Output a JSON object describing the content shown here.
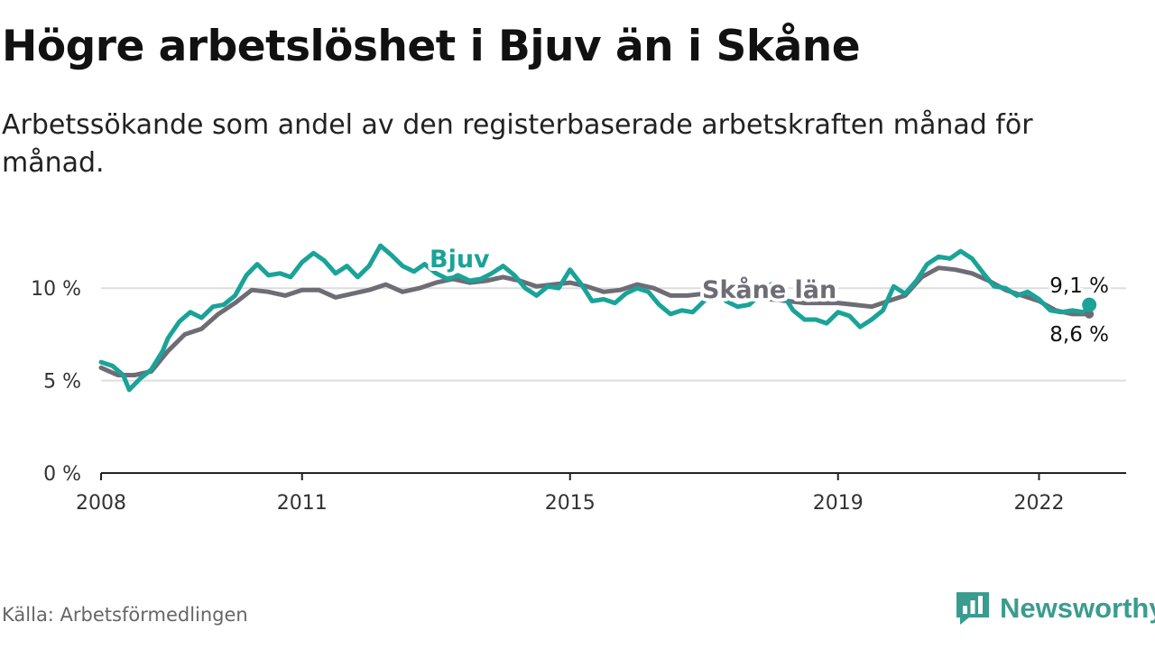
{
  "title": "Högre arbetslöshet i Bjuv än i Skåne",
  "subtitle": "Arbetssökande som andel av den registerbaserade arbetskraften månad för månad.",
  "source": "Källa: Arbetsförmedlingen",
  "brand": "Newsworthy",
  "colors": {
    "bjuv": "#1aa398",
    "skane": "#6e6c75",
    "grid": "#dddddd",
    "axis": "#222222",
    "brand": "#3a9c8f"
  },
  "chart_data": {
    "type": "line",
    "title": "Högre arbetslöshet i Bjuv än i Skåne",
    "xlabel": "",
    "ylabel": "",
    "xlim": [
      2008,
      2023.3
    ],
    "ylim": [
      0,
      12.5
    ],
    "x_ticks": [
      2008,
      2011,
      2015,
      2019,
      2022
    ],
    "x_tick_labels": [
      "2008",
      "2011",
      "2015",
      "2019",
      "2022"
    ],
    "y_ticks": [
      0,
      5,
      10
    ],
    "y_tick_labels": [
      "0 %",
      "5 %",
      "10 %"
    ],
    "grid": true,
    "series": [
      {
        "name": "Bjuv",
        "label": "Bjuv",
        "end_label": "9,1 %",
        "end_value": 9.1,
        "points": [
          [
            2008.0,
            6.0
          ],
          [
            2008.17,
            5.8
          ],
          [
            2008.33,
            5.3
          ],
          [
            2008.42,
            4.5
          ],
          [
            2008.58,
            5.1
          ],
          [
            2008.75,
            5.6
          ],
          [
            2008.92,
            6.6
          ],
          [
            2009.0,
            7.3
          ],
          [
            2009.17,
            8.2
          ],
          [
            2009.33,
            8.7
          ],
          [
            2009.5,
            8.4
          ],
          [
            2009.67,
            9.0
          ],
          [
            2009.83,
            9.1
          ],
          [
            2010.0,
            9.6
          ],
          [
            2010.17,
            10.7
          ],
          [
            2010.33,
            11.3
          ],
          [
            2010.5,
            10.7
          ],
          [
            2010.67,
            10.8
          ],
          [
            2010.83,
            10.6
          ],
          [
            2011.0,
            11.4
          ],
          [
            2011.17,
            11.9
          ],
          [
            2011.33,
            11.5
          ],
          [
            2011.5,
            10.8
          ],
          [
            2011.67,
            11.2
          ],
          [
            2011.83,
            10.6
          ],
          [
            2012.0,
            11.2
          ],
          [
            2012.17,
            12.3
          ],
          [
            2012.33,
            11.8
          ],
          [
            2012.5,
            11.2
          ],
          [
            2012.67,
            10.9
          ],
          [
            2012.83,
            11.3
          ],
          [
            2013.0,
            10.8
          ],
          [
            2013.17,
            10.5
          ],
          [
            2013.33,
            10.7
          ],
          [
            2013.5,
            10.4
          ],
          [
            2013.67,
            10.5
          ],
          [
            2013.83,
            10.8
          ],
          [
            2014.0,
            11.2
          ],
          [
            2014.17,
            10.7
          ],
          [
            2014.33,
            10.0
          ],
          [
            2014.5,
            9.6
          ],
          [
            2014.67,
            10.1
          ],
          [
            2014.83,
            10.0
          ],
          [
            2015.0,
            11.0
          ],
          [
            2015.17,
            10.2
          ],
          [
            2015.33,
            9.3
          ],
          [
            2015.5,
            9.4
          ],
          [
            2015.67,
            9.2
          ],
          [
            2015.83,
            9.7
          ],
          [
            2016.0,
            10.0
          ],
          [
            2016.17,
            9.8
          ],
          [
            2016.33,
            9.1
          ],
          [
            2016.5,
            8.6
          ],
          [
            2016.67,
            8.8
          ],
          [
            2016.83,
            8.7
          ],
          [
            2017.0,
            9.3
          ],
          [
            2017.17,
            9.9
          ],
          [
            2017.33,
            9.3
          ],
          [
            2017.5,
            9.0
          ],
          [
            2017.67,
            9.1
          ],
          [
            2017.83,
            9.6
          ],
          [
            2018.0,
            10.2
          ],
          [
            2018.17,
            9.7
          ],
          [
            2018.33,
            8.8
          ],
          [
            2018.5,
            8.3
          ],
          [
            2018.67,
            8.3
          ],
          [
            2018.83,
            8.1
          ],
          [
            2019.0,
            8.7
          ],
          [
            2019.17,
            8.5
          ],
          [
            2019.33,
            7.9
          ],
          [
            2019.5,
            8.3
          ],
          [
            2019.67,
            8.8
          ],
          [
            2019.83,
            10.1
          ],
          [
            2020.0,
            9.7
          ],
          [
            2020.17,
            10.4
          ],
          [
            2020.33,
            11.3
          ],
          [
            2020.5,
            11.7
          ],
          [
            2020.67,
            11.6
          ],
          [
            2020.83,
            12.0
          ],
          [
            2021.0,
            11.6
          ],
          [
            2021.17,
            10.8
          ],
          [
            2021.33,
            10.1
          ],
          [
            2021.5,
            10.0
          ],
          [
            2021.67,
            9.6
          ],
          [
            2021.83,
            9.8
          ],
          [
            2022.0,
            9.4
          ],
          [
            2022.17,
            8.8
          ],
          [
            2022.33,
            8.7
          ],
          [
            2022.5,
            8.8
          ],
          [
            2022.67,
            8.7
          ],
          [
            2022.75,
            9.1
          ]
        ]
      },
      {
        "name": "Skåne län",
        "label": "Skåne län",
        "end_label": "8,6 %",
        "end_value": 8.6,
        "points": [
          [
            2008.0,
            5.7
          ],
          [
            2008.25,
            5.3
          ],
          [
            2008.5,
            5.3
          ],
          [
            2008.75,
            5.5
          ],
          [
            2009.0,
            6.6
          ],
          [
            2009.25,
            7.5
          ],
          [
            2009.5,
            7.8
          ],
          [
            2009.75,
            8.6
          ],
          [
            2010.0,
            9.2
          ],
          [
            2010.25,
            9.9
          ],
          [
            2010.5,
            9.8
          ],
          [
            2010.75,
            9.6
          ],
          [
            2011.0,
            9.9
          ],
          [
            2011.25,
            9.9
          ],
          [
            2011.5,
            9.5
          ],
          [
            2011.75,
            9.7
          ],
          [
            2012.0,
            9.9
          ],
          [
            2012.25,
            10.2
          ],
          [
            2012.5,
            9.8
          ],
          [
            2012.75,
            10.0
          ],
          [
            2013.0,
            10.3
          ],
          [
            2013.25,
            10.5
          ],
          [
            2013.5,
            10.3
          ],
          [
            2013.75,
            10.4
          ],
          [
            2014.0,
            10.6
          ],
          [
            2014.25,
            10.4
          ],
          [
            2014.5,
            10.1
          ],
          [
            2014.75,
            10.2
          ],
          [
            2015.0,
            10.3
          ],
          [
            2015.25,
            10.1
          ],
          [
            2015.5,
            9.8
          ],
          [
            2015.75,
            9.9
          ],
          [
            2016.0,
            10.2
          ],
          [
            2016.25,
            10.0
          ],
          [
            2016.5,
            9.6
          ],
          [
            2016.75,
            9.6
          ],
          [
            2017.0,
            9.7
          ],
          [
            2017.25,
            9.7
          ],
          [
            2017.5,
            9.5
          ],
          [
            2017.75,
            9.5
          ],
          [
            2018.0,
            9.4
          ],
          [
            2018.25,
            9.3
          ],
          [
            2018.5,
            9.2
          ],
          [
            2018.75,
            9.2
          ],
          [
            2019.0,
            9.2
          ],
          [
            2019.25,
            9.1
          ],
          [
            2019.5,
            9.0
          ],
          [
            2019.75,
            9.3
          ],
          [
            2020.0,
            9.6
          ],
          [
            2020.25,
            10.6
          ],
          [
            2020.5,
            11.1
          ],
          [
            2020.75,
            11.0
          ],
          [
            2021.0,
            10.8
          ],
          [
            2021.25,
            10.4
          ],
          [
            2021.5,
            9.9
          ],
          [
            2021.75,
            9.6
          ],
          [
            2022.0,
            9.3
          ],
          [
            2022.25,
            8.8
          ],
          [
            2022.5,
            8.6
          ],
          [
            2022.75,
            8.6
          ]
        ]
      }
    ]
  }
}
